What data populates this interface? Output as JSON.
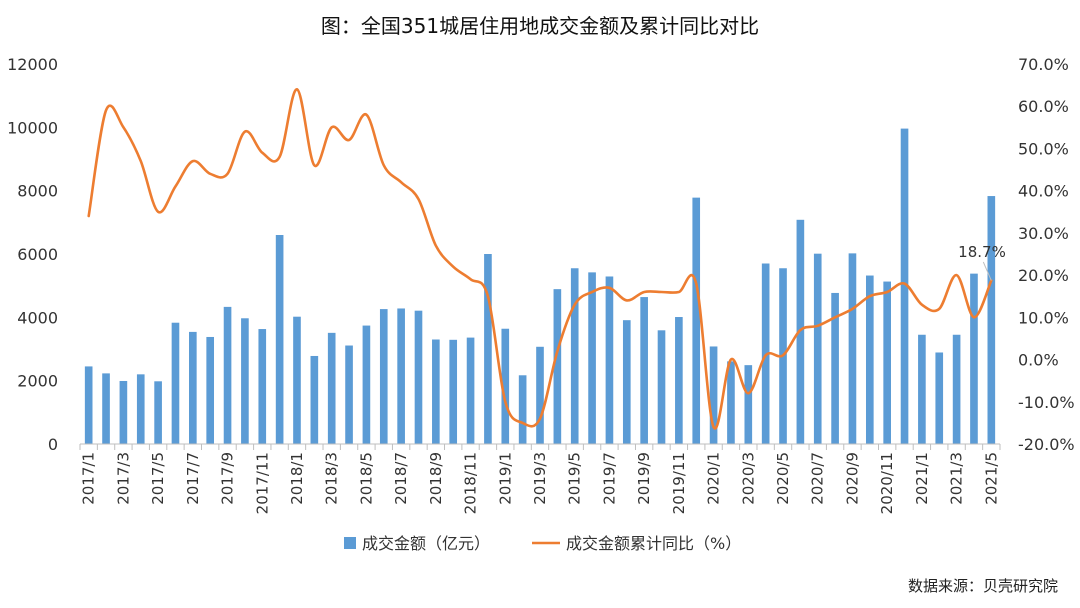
{
  "chart_data": {
    "type": "bar+line",
    "title": "图：全国351城居住用地成交金额及累计同比对比",
    "source": "数据来源：贝壳研究院",
    "categories": [
      "2017/1",
      "2017/2",
      "2017/3",
      "2017/4",
      "2017/5",
      "2017/6",
      "2017/7",
      "2017/8",
      "2017/9",
      "2017/10",
      "2017/11",
      "2017/12",
      "2018/1",
      "2018/2",
      "2018/3",
      "2018/4",
      "2018/5",
      "2018/6",
      "2018/7",
      "2018/8",
      "2018/9",
      "2018/10",
      "2018/11",
      "2018/12",
      "2019/1",
      "2019/2",
      "2019/3",
      "2019/4",
      "2019/5",
      "2019/6",
      "2019/7",
      "2019/8",
      "2019/9",
      "2019/10",
      "2019/11",
      "2019/12",
      "2020/1",
      "2020/2",
      "2020/3",
      "2020/4",
      "2020/5",
      "2020/6",
      "2020/7",
      "2020/8",
      "2020/9",
      "2020/10",
      "2020/11",
      "2020/12",
      "2021/1",
      "2021/2",
      "2021/3",
      "2021/4",
      "2021/5"
    ],
    "x_tick_labels": [
      "2017/1",
      "2017/3",
      "2017/5",
      "2017/7",
      "2017/9",
      "2017/11",
      "2018/1",
      "2018/3",
      "2018/5",
      "2018/7",
      "2018/9",
      "2018/11",
      "2019/1",
      "2019/3",
      "2019/5",
      "2019/7",
      "2019/9",
      "2019/11",
      "2020/1",
      "2020/3",
      "2020/5",
      "2020/7",
      "2020/9",
      "2020/11",
      "2021/1",
      "2021/3",
      "2021/5"
    ],
    "series": [
      {
        "name": "成交金额（亿元）",
        "type": "bar",
        "axis": "left",
        "color": "#5b9bd5",
        "values": [
          2450,
          2230,
          1990,
          2200,
          1980,
          3830,
          3540,
          3380,
          4330,
          3970,
          3630,
          6600,
          4020,
          2780,
          3510,
          3110,
          3740,
          4260,
          4280,
          4210,
          3300,
          3290,
          3360,
          6000,
          3640,
          2170,
          3070,
          4890,
          5550,
          5420,
          5290,
          3910,
          4640,
          3590,
          4010,
          7780,
          3080,
          2610,
          2490,
          5700,
          5550,
          7080,
          6010,
          4770,
          6020,
          5320,
          5130,
          9960,
          3450,
          2890,
          3450,
          5380,
          7830
        ]
      },
      {
        "name": "成交金额累计同比（%）",
        "type": "line",
        "axis": "right",
        "color": "#ed7d31",
        "values": [
          34,
          59,
          55,
          47,
          35,
          41,
          47,
          44,
          44,
          54,
          49,
          48,
          64,
          46,
          55,
          52,
          58,
          46,
          42,
          38,
          27,
          22,
          19,
          15,
          -10,
          -15,
          -14,
          2,
          13,
          16,
          17,
          14,
          16,
          16,
          16,
          18,
          -16,
          0,
          -8,
          1,
          1,
          7,
          8,
          10,
          12,
          15,
          16,
          18,
          13,
          12,
          20,
          10,
          18.7
        ]
      }
    ],
    "y_left": {
      "min": 0,
      "max": 12000,
      "ticks": [
        "0",
        "2000",
        "4000",
        "6000",
        "8000",
        "10000",
        "12000"
      ]
    },
    "y_right": {
      "min": -20,
      "max": 70,
      "ticks": [
        "-20.0%",
        "-10.0%",
        "0.0%",
        "10.0%",
        "20.0%",
        "30.0%",
        "40.0%",
        "50.0%",
        "60.0%",
        "70.0%"
      ]
    },
    "annotation": {
      "label": "18.7%",
      "category": "2021/5"
    },
    "legend": {
      "position": "bottom",
      "items": [
        "成交金额（亿元）",
        "成交金额累计同比（%）"
      ]
    },
    "grid": false
  }
}
